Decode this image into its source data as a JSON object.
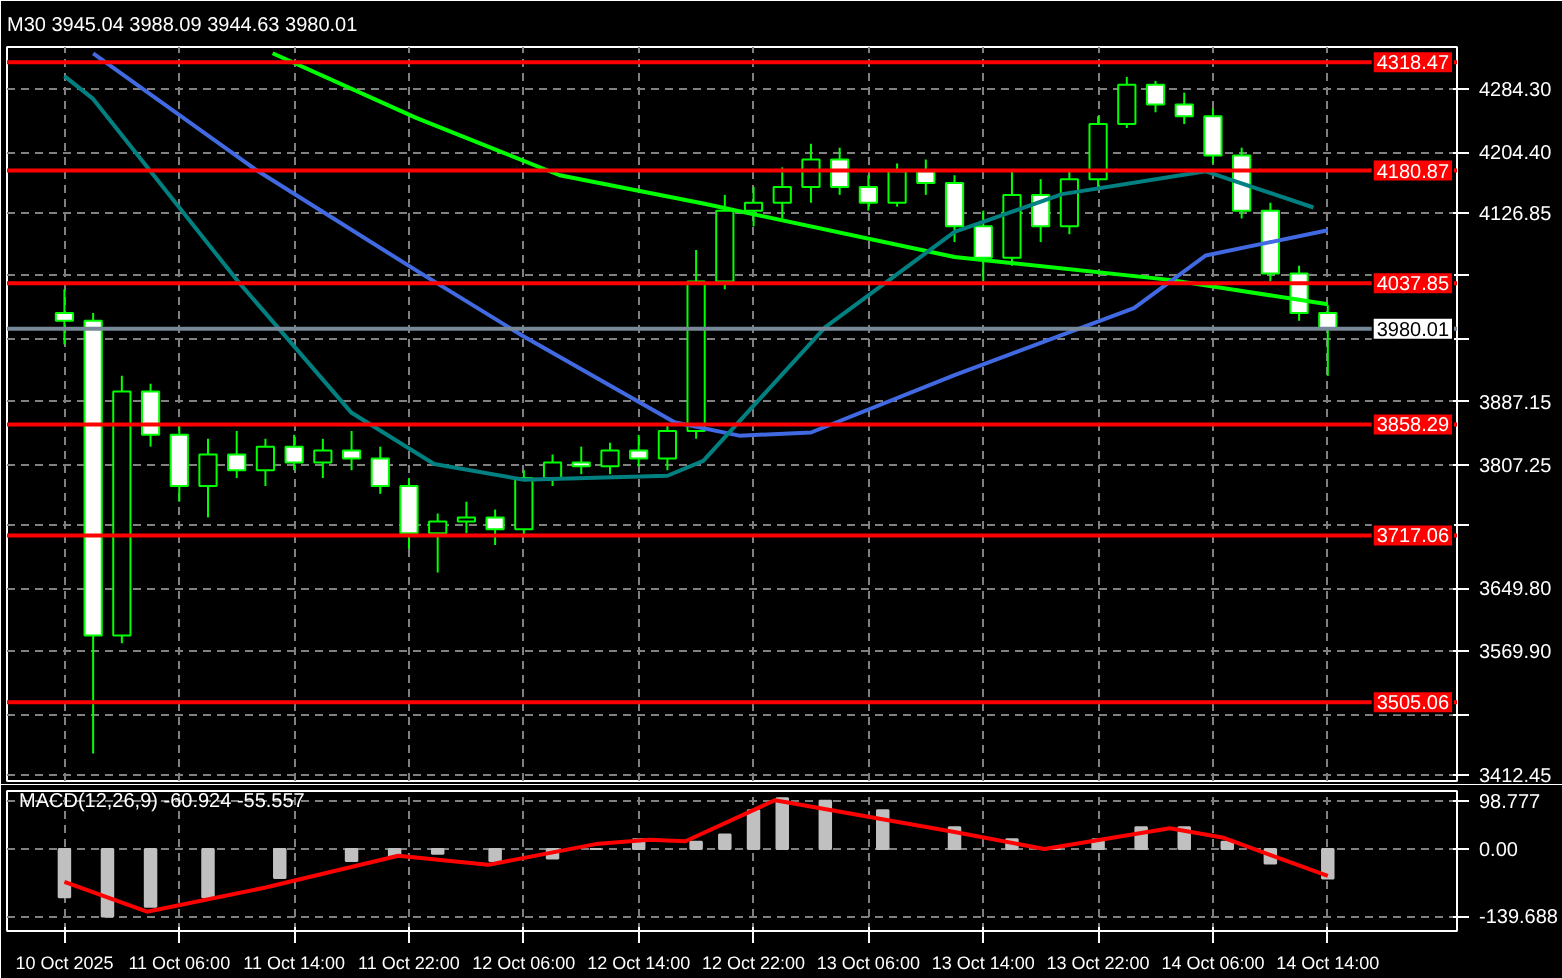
{
  "chart_data": [
    {
      "type": "candlestick",
      "title": "M30 3945.04 3988.09 3944.63 3980.01",
      "color": "#00ff00",
      "xlim": [
        "2025-10-10T18:00",
        "2025-10-14T23:00"
      ],
      "ylim": [
        3405,
        4338
      ],
      "grid": true,
      "tick_labels": "y",
      "xticks": [
        "2025-10-10T22:00",
        "2025-10-11T06:00",
        "2025-10-11T14:00",
        "2025-10-11T22:00",
        "2025-10-12T06:00",
        "2025-10-12T14:00",
        "2025-10-12T22:00",
        "2025-10-13T06:00",
        "2025-10-13T14:00",
        "2025-10-13T22:00",
        "2025-10-14T06:00",
        "2025-10-14T14:00"
      ],
      "yticks": [
        {
          "value": 4284.3,
          "label": "4284.30"
        },
        {
          "value": 4204.4,
          "label": "4204.40"
        },
        {
          "value": 4126.85,
          "label": "4126.85"
        },
        {
          "value": 4046.95,
          "label": null
        },
        {
          "value": 3967.05,
          "label": null
        },
        {
          "value": 3887.15,
          "label": "3887.15"
        },
        {
          "value": 3807.25,
          "label": "3807.25"
        },
        {
          "value": 3729.7,
          "label": null
        },
        {
          "value": 3649.8,
          "label": "3649.80"
        },
        {
          "value": 3569.9,
          "label": "3569.90"
        },
        {
          "value": 3490.0,
          "label": null
        },
        {
          "value": 3412.45,
          "label": "3412.45"
        }
      ],
      "x": [
        "2025-10-10T22:00",
        "2025-10-11T00:00",
        "2025-10-11T02:00",
        "2025-10-11T04:00",
        "2025-10-11T06:00",
        "2025-10-11T08:00",
        "2025-10-11T10:00",
        "2025-10-11T12:00",
        "2025-10-11T14:00",
        "2025-10-11T16:00",
        "2025-10-11T18:00",
        "2025-10-11T20:00",
        "2025-10-11T22:00",
        "2025-10-12T00:00",
        "2025-10-12T02:00",
        "2025-10-12T04:00",
        "2025-10-12T06:00",
        "2025-10-12T08:00",
        "2025-10-12T10:00",
        "2025-10-12T12:00",
        "2025-10-12T14:00",
        "2025-10-12T16:00",
        "2025-10-12T18:00",
        "2025-10-12T20:00",
        "2025-10-12T22:00",
        "2025-10-13T00:00",
        "2025-10-13T02:00",
        "2025-10-13T04:00",
        "2025-10-13T06:00",
        "2025-10-13T08:00",
        "2025-10-13T10:00",
        "2025-10-13T12:00",
        "2025-10-13T14:00",
        "2025-10-13T16:00",
        "2025-10-13T18:00",
        "2025-10-13T20:00",
        "2025-10-13T22:00",
        "2025-10-14T00:00",
        "2025-10-14T02:00",
        "2025-10-14T04:00",
        "2025-10-14T06:00",
        "2025-10-14T08:00",
        "2025-10-14T10:00",
        "2025-10-14T12:00",
        "2025-10-14T14:00"
      ],
      "ohlc": [
        [
          4000,
          4030,
          3960,
          3990
        ],
        [
          3990,
          4000,
          3440,
          3590
        ],
        [
          3590,
          3920,
          3580,
          3900
        ],
        [
          3900,
          3910,
          3830,
          3845
        ],
        [
          3845,
          3860,
          3760,
          3780
        ],
        [
          3780,
          3840,
          3740,
          3820
        ],
        [
          3820,
          3850,
          3790,
          3800
        ],
        [
          3800,
          3840,
          3780,
          3830
        ],
        [
          3830,
          3845,
          3800,
          3810
        ],
        [
          3810,
          3840,
          3790,
          3825
        ],
        [
          3825,
          3850,
          3800,
          3815
        ],
        [
          3815,
          3830,
          3770,
          3780
        ],
        [
          3780,
          3790,
          3700,
          3720
        ],
        [
          3720,
          3745,
          3670,
          3735
        ],
        [
          3735,
          3760,
          3720,
          3740
        ],
        [
          3740,
          3750,
          3705,
          3725
        ],
        [
          3725,
          3800,
          3715,
          3790
        ],
        [
          3790,
          3820,
          3780,
          3810
        ],
        [
          3810,
          3830,
          3795,
          3805
        ],
        [
          3805,
          3835,
          3795,
          3825
        ],
        [
          3825,
          3845,
          3805,
          3815
        ],
        [
          3815,
          3860,
          3800,
          3850
        ],
        [
          3850,
          4080,
          3840,
          4040
        ],
        [
          4040,
          4150,
          4030,
          4130
        ],
        [
          4130,
          4160,
          4110,
          4140
        ],
        [
          4140,
          4185,
          4120,
          4160
        ],
        [
          4160,
          4215,
          4140,
          4195
        ],
        [
          4195,
          4210,
          4150,
          4160
        ],
        [
          4160,
          4175,
          4130,
          4140
        ],
        [
          4140,
          4190,
          4135,
          4180
        ],
        [
          4180,
          4195,
          4150,
          4165
        ],
        [
          4165,
          4175,
          4090,
          4110
        ],
        [
          4110,
          4130,
          4040,
          4070
        ],
        [
          4070,
          4180,
          4060,
          4150
        ],
        [
          4150,
          4170,
          4090,
          4110
        ],
        [
          4110,
          4180,
          4100,
          4170
        ],
        [
          4170,
          4250,
          4160,
          4240
        ],
        [
          4240,
          4300,
          4235,
          4290
        ],
        [
          4290,
          4295,
          4255,
          4265
        ],
        [
          4265,
          4280,
          4240,
          4250
        ],
        [
          4250,
          4260,
          4190,
          4200
        ],
        [
          4200,
          4210,
          4120,
          4130
        ],
        [
          4130,
          4140,
          4040,
          4050
        ],
        [
          4050,
          4060,
          3990,
          4000
        ],
        [
          4000,
          4010,
          3920,
          3980.01
        ]
      ],
      "series": [
        {
          "type": "line",
          "color": "#00ff00",
          "x": [
            "2025-10-11T12:30",
            "2025-10-11T22:30",
            "2025-10-12T08:30",
            "2025-10-12T18:30",
            "2025-10-13T12:00",
            "2025-10-14T03:00",
            "2025-10-14T14:00"
          ],
          "values": [
            4330,
            4248,
            4175,
            4139,
            4071,
            4042,
            4011
          ]
        },
        {
          "type": "line",
          "color": "#4169e1",
          "x": [
            "2025-10-11T00:00",
            "2025-10-11T11:15",
            "2025-10-11T22:30",
            "2025-10-12T06:00",
            "2025-10-12T16:30",
            "2025-10-12T21:00",
            "2025-10-13T02:00",
            "2025-10-13T12:00",
            "2025-10-14T00:30",
            "2025-10-14T05:30",
            "2025-10-14T14:00"
          ],
          "values": [
            4330,
            4183,
            4054,
            3970,
            3861,
            3844,
            3848,
            3921,
            4006,
            4073,
            4105
          ]
        },
        {
          "type": "line",
          "color": "#008080",
          "x": [
            "2025-10-10T22:00",
            "2025-10-11T00:00",
            "2025-10-11T10:00",
            "2025-10-11T18:00",
            "2025-10-11T23:45",
            "2025-10-12T06:00",
            "2025-10-12T16:00",
            "2025-10-12T18:30",
            "2025-10-13T03:00",
            "2025-10-13T12:00",
            "2025-10-13T19:30",
            "2025-10-14T05:30",
            "2025-10-14T13:00"
          ],
          "values": [
            4301,
            4272,
            4042,
            3873,
            3808,
            3788,
            3793,
            3812,
            3982,
            4103,
            4151,
            4180,
            4134
          ]
        }
      ],
      "ref_lines": [
        {
          "axis": "y",
          "value": 4318.47,
          "label": "4318.47",
          "color": "#ff0000"
        },
        {
          "axis": "y",
          "value": 4180.87,
          "label": "4180.87",
          "color": "#ff0000"
        },
        {
          "axis": "y",
          "value": 4037.85,
          "label": "4037.85",
          "color": "#ff0000"
        },
        {
          "axis": "y",
          "value": 3980.01,
          "label": "3980.01",
          "color": "#778899"
        },
        {
          "axis": "y",
          "value": 3858.29,
          "label": "3858.29",
          "color": "#ff0000"
        },
        {
          "axis": "y",
          "value": 3717.06,
          "label": "3717.06",
          "color": "#ff0000"
        },
        {
          "axis": "y",
          "value": 3505.06,
          "label": "3505.06",
          "color": "#ff0000"
        }
      ]
    },
    {
      "type": "bar",
      "title": "MACD(12,26,9) -60.924 -55.557",
      "xlim": [
        "2025-10-10T18:00",
        "2025-10-14T23:00"
      ],
      "ylim": [
        -170,
        120
      ],
      "grid": true,
      "xticks": [
        {
          "value": "2025-10-10T22:00",
          "label": "10 Oct 2025"
        },
        {
          "value": "2025-10-11T06:00",
          "label": "11 Oct 06:00"
        },
        {
          "value": "2025-10-11T14:00",
          "label": "11 Oct 14:00"
        },
        {
          "value": "2025-10-11T22:00",
          "label": "11 Oct 22:00"
        },
        {
          "value": "2025-10-12T06:00",
          "label": "12 Oct 06:00"
        },
        {
          "value": "2025-10-12T14:00",
          "label": "12 Oct 14:00"
        },
        {
          "value": "2025-10-12T22:00",
          "label": "12 Oct 22:00"
        },
        {
          "value": "2025-10-13T06:00",
          "label": "13 Oct 06:00"
        },
        {
          "value": "2025-10-13T14:00",
          "label": "13 Oct 14:00"
        },
        {
          "value": "2025-10-13T22:00",
          "label": "13 Oct 22:00"
        },
        {
          "value": "2025-10-14T06:00",
          "label": "14 Oct 06:00"
        },
        {
          "value": "2025-10-14T14:00",
          "label": "14 Oct 14:00"
        }
      ],
      "yticks": [
        {
          "value": 98.777,
          "label": "98.777"
        },
        {
          "value": 0,
          "label": "0.00"
        },
        {
          "value": -139.688,
          "label": "-139.688"
        }
      ],
      "series": [
        {
          "type": "bar",
          "color": "#c0c0c0",
          "x": [
            "2025-10-10T22:00",
            "2025-10-11T01:00",
            "2025-10-11T04:00",
            "2025-10-11T08:00",
            "2025-10-11T13:00",
            "2025-10-11T18:00",
            "2025-10-11T21:00",
            "2025-10-12T00:00",
            "2025-10-12T04:00",
            "2025-10-12T08:00",
            "2025-10-12T11:00",
            "2025-10-12T14:00",
            "2025-10-12T18:00",
            "2025-10-12T20:00",
            "2025-10-12T22:00",
            "2025-10-13T00:00",
            "2025-10-13T03:00",
            "2025-10-13T07:00",
            "2025-10-13T12:00",
            "2025-10-13T16:00",
            "2025-10-13T19:00",
            "2025-10-13T22:00",
            "2025-10-14T01:00",
            "2025-10-14T04:00",
            "2025-10-14T07:00",
            "2025-10-14T10:00",
            "2025-10-14T14:00"
          ],
          "values": [
            -100,
            -140,
            -120,
            -100,
            -60,
            -25,
            -15,
            -10,
            -25,
            -20,
            0,
            20,
            15,
            30,
            80,
            105,
            100,
            80,
            45,
            20,
            0,
            20,
            45,
            45,
            15,
            -30,
            -61
          ]
        },
        {
          "type": "line",
          "color": "#ff0000",
          "x": [
            "2025-10-10T22:00",
            "2025-10-11T03:45",
            "2025-10-11T12:00",
            "2025-10-11T21:15",
            "2025-10-12T03:30",
            "2025-10-12T11:00",
            "2025-10-12T14:45",
            "2025-10-12T17:15",
            "2025-10-12T23:30",
            "2025-10-13T12:00",
            "2025-10-13T18:15",
            "2025-10-14T03:00",
            "2025-10-14T06:45",
            "2025-10-14T14:00"
          ],
          "values": [
            -68,
            -130,
            -80,
            -14,
            -33,
            10,
            19,
            16,
            101,
            35,
            0,
            43,
            23,
            -56
          ]
        }
      ]
    }
  ]
}
